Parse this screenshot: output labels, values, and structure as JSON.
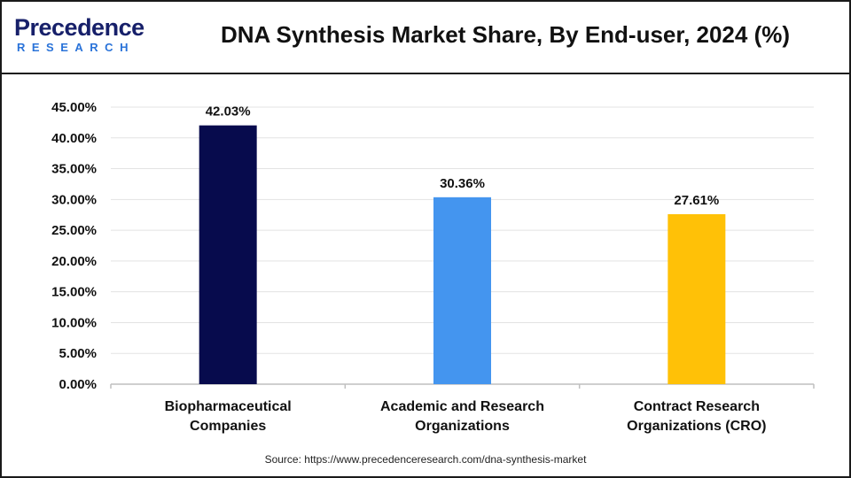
{
  "header": {
    "logo_top": "Precedence",
    "logo_bottom": "RESEARCH",
    "title": "DNA Synthesis Market Share, By End-user, 2024 (%)"
  },
  "source": "Source: https://www.precedenceresearch.com/dna-synthesis-market",
  "chart_data": {
    "type": "bar",
    "title": "DNA Synthesis Market Share, By End-user, 2024 (%)",
    "xlabel": "",
    "ylabel": "",
    "ylim": [
      0,
      45
    ],
    "yticks": [
      "0.00%",
      "5.00%",
      "10.00%",
      "15.00%",
      "20.00%",
      "25.00%",
      "30.00%",
      "35.00%",
      "40.00%",
      "45.00%"
    ],
    "ytick_values": [
      0,
      5,
      10,
      15,
      20,
      25,
      30,
      35,
      40,
      45
    ],
    "grid": true,
    "legend": "none",
    "categories": [
      [
        "Biopharmaceutical",
        "Companies"
      ],
      [
        "Academic and Research",
        "Organizations"
      ],
      [
        "Contract Research",
        "Organizations (CRO)"
      ]
    ],
    "values": [
      42.03,
      30.36,
      27.61
    ],
    "value_labels": [
      "42.03%",
      "30.36%",
      "27.61%"
    ],
    "colors": [
      "#070b4d",
      "#4495ef",
      "#ffc107"
    ]
  }
}
